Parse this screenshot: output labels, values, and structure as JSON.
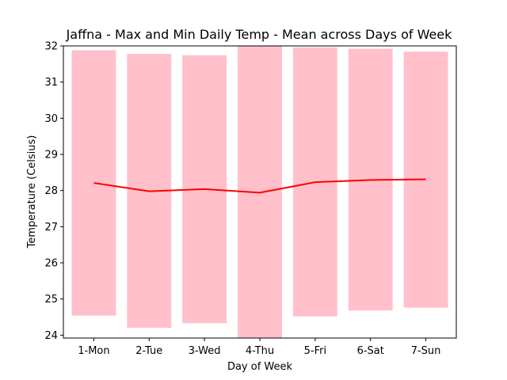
{
  "chart_data": {
    "type": "bar",
    "title": "Jaffna - Max and Min Daily Temp - Mean across Days of Week",
    "xlabel": "Day of Week",
    "ylabel": "Temperature (Celsius)",
    "categories": [
      "1-Mon",
      "2-Tue",
      "3-Wed",
      "4-Thu",
      "5-Fri",
      "6-Sat",
      "7-Sun"
    ],
    "ylim": [
      23.92,
      32.0
    ],
    "yticks": [
      24,
      25,
      26,
      27,
      28,
      29,
      30,
      31,
      32
    ],
    "grid": false,
    "series": [
      {
        "kind": "floating-bar",
        "color": "#ffc0cb",
        "min": [
          24.54,
          24.2,
          24.33,
          23.92,
          24.52,
          24.68,
          24.76
        ],
        "max": [
          31.88,
          31.78,
          31.74,
          32.0,
          31.96,
          31.92,
          31.84
        ]
      },
      {
        "kind": "line",
        "color": "#ff0000",
        "values": [
          28.21,
          27.98,
          28.04,
          27.94,
          28.23,
          28.29,
          28.31
        ]
      }
    ]
  }
}
